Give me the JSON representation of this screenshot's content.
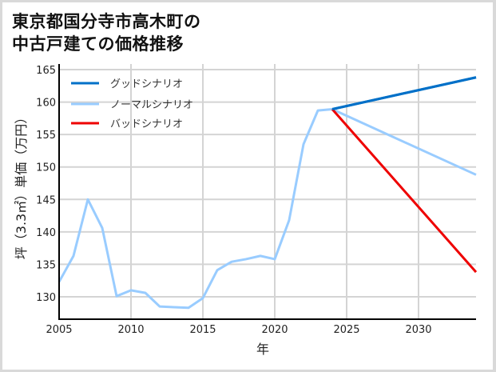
{
  "title_line1": "東京都国分寺市高木町の",
  "title_line2": "中古戸建ての価格推移",
  "chart_data": {
    "type": "line",
    "title": "東京都国分寺市高木町の中古戸建ての価格推移",
    "xlabel": "年",
    "ylabel": "坪（3.3㎡）単価（万円）",
    "xlim": [
      2005,
      2034
    ],
    "ylim": [
      126.5,
      165.5
    ],
    "x_ticks": [
      2005,
      2010,
      2015,
      2020,
      2025,
      2030
    ],
    "y_ticks": [
      130,
      135,
      140,
      145,
      150,
      155,
      160,
      165
    ],
    "grid": true,
    "legend_position": "upper left",
    "series": [
      {
        "name": "グッドシナリオ",
        "color": "#0070c8",
        "x": [
          2024,
          2034
        ],
        "values": [
          158.9,
          163.8
        ]
      },
      {
        "name": "ノーマルシナリオ",
        "color": "#99ccff",
        "x": [
          2005,
          2006,
          2007,
          2008,
          2009,
          2010,
          2011,
          2012,
          2013,
          2014,
          2015,
          2016,
          2017,
          2018,
          2019,
          2020,
          2021,
          2022,
          2023,
          2024,
          2034
        ],
        "values": [
          132.3,
          136.3,
          145.0,
          140.6,
          130.1,
          131.0,
          130.6,
          128.5,
          128.4,
          128.3,
          129.8,
          134.1,
          135.4,
          135.8,
          136.3,
          135.8,
          141.8,
          153.5,
          158.7,
          158.9,
          148.8
        ]
      },
      {
        "name": "バッドシナリオ",
        "color": "#ee0000",
        "x": [
          2024,
          2034
        ],
        "values": [
          158.9,
          133.8
        ]
      }
    ]
  }
}
